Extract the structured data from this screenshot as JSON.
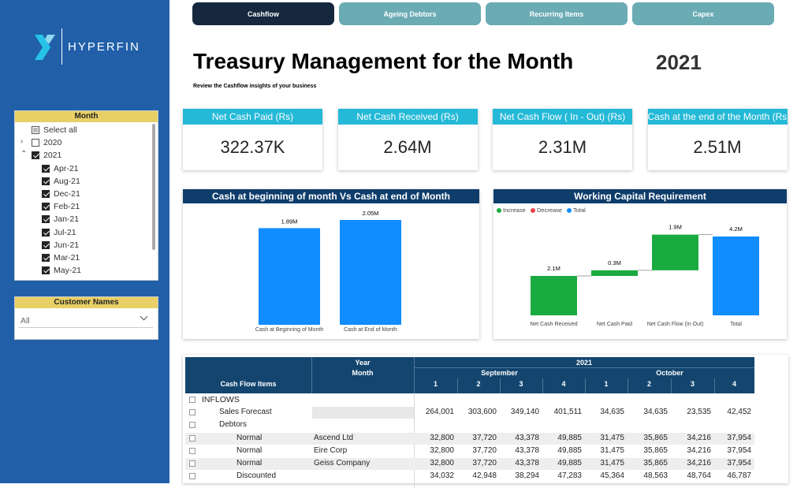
{
  "tabs": [
    "Cashflow",
    "Ageing Debtors",
    "Recurring Items",
    "Capex"
  ],
  "active_tab": 0,
  "logo": "HYPERFIN",
  "header": {
    "title": "Treasury Management for the Month",
    "year": "2021",
    "subtitle": "Review the Cashflow insights of your business"
  },
  "month_slicer": {
    "title": "Month",
    "items": [
      {
        "label": "Select all",
        "state": "partial",
        "level": 0
      },
      {
        "label": "2020",
        "state": "unchecked",
        "level": 0,
        "expand": "collapsed"
      },
      {
        "label": "2021",
        "state": "checked",
        "level": 0,
        "expand": "expanded"
      },
      {
        "label": "Apr-21",
        "state": "checked",
        "level": 1
      },
      {
        "label": "Aug-21",
        "state": "checked",
        "level": 1
      },
      {
        "label": "Dec-21",
        "state": "checked",
        "level": 1
      },
      {
        "label": "Feb-21",
        "state": "checked",
        "level": 1
      },
      {
        "label": "Jan-21",
        "state": "checked",
        "level": 1
      },
      {
        "label": "Jul-21",
        "state": "checked",
        "level": 1
      },
      {
        "label": "Jun-21",
        "state": "checked",
        "level": 1
      },
      {
        "label": "Mar-21",
        "state": "checked",
        "level": 1
      },
      {
        "label": "May-21",
        "state": "checked",
        "level": 1
      }
    ]
  },
  "customer_slicer": {
    "title": "Customer Names",
    "value": "All"
  },
  "kpis": [
    {
      "label": "Net Cash Paid (Rs)",
      "value": "322.37K"
    },
    {
      "label": "Net Cash Received (Rs)",
      "value": "2.64M"
    },
    {
      "label": "Net Cash Flow ( In - Out) (Rs)",
      "value": "2.31M"
    },
    {
      "label": "Cash at the end of the Month (Rs)",
      "value": "2.51M"
    }
  ],
  "chart_data": [
    {
      "type": "bar",
      "title": "Cash at beginning of month Vs Cash at end of Month",
      "categories": [
        "Cash at Beginning of Month",
        "Cash at End of Month"
      ],
      "values": [
        1.89,
        2.05
      ],
      "value_labels": [
        "1.89M",
        "2.05M"
      ],
      "color": "#118dff"
    },
    {
      "type": "waterfall",
      "title": "Working Capital Requirement",
      "legend": [
        {
          "name": "Increase",
          "color": "#1aab40"
        },
        {
          "name": "Decrease",
          "color": "#e8424d"
        },
        {
          "name": "Total",
          "color": "#118dff"
        }
      ],
      "categories": [
        "Net Cash Received",
        "Net Cash Paid",
        "Net Cash Flow (In Out)",
        "Total"
      ],
      "kinds": [
        "Increase",
        "Increase",
        "Increase",
        "Total"
      ],
      "values": [
        2.1,
        0.3,
        1.9,
        4.2
      ],
      "value_labels": [
        "2.1M",
        "0.3M",
        "1.9M",
        "4.2M"
      ]
    }
  ],
  "table": {
    "year_label": "Year",
    "month_label": "Month",
    "items_label": "Cash Flow Items",
    "year": "2021",
    "months": [
      "September",
      "October"
    ],
    "weeks": [
      "1",
      "2",
      "3",
      "4",
      "1",
      "2",
      "3",
      "4"
    ],
    "rows": [
      {
        "item": "INFLOWS",
        "level": 0,
        "customer": "",
        "cells": []
      },
      {
        "item": "Sales Forecast",
        "level": 1,
        "customer": "",
        "cells": [
          "264,001",
          "303,600",
          "349,140",
          "401,511",
          "34,635",
          "34,635",
          "23,535",
          "42,452"
        ]
      },
      {
        "item": "Debtors",
        "level": 1,
        "customer": "",
        "cells": []
      },
      {
        "item": "Normal",
        "level": 2,
        "customer": "Ascend Ltd",
        "cells": [
          "32,800",
          "37,720",
          "43,378",
          "49,885",
          "31,475",
          "35,865",
          "34,216",
          "37,954"
        ]
      },
      {
        "item": "Normal",
        "level": 2,
        "customer": "Eire Corp",
        "cells": [
          "32,800",
          "37,720",
          "43,378",
          "49,885",
          "31,475",
          "35,865",
          "34,216",
          "37,954"
        ]
      },
      {
        "item": "Normal",
        "level": 2,
        "customer": "Geiss Company",
        "cells": [
          "32,800",
          "37,720",
          "43,378",
          "49,885",
          "31,475",
          "35,865",
          "34,216",
          "37,954"
        ]
      },
      {
        "item": "Discounted",
        "level": 2,
        "customer": "",
        "cells": [
          "34,032",
          "42,948",
          "38,294",
          "47,283",
          "45,364",
          "48,563",
          "48,764",
          "46,787"
        ]
      }
    ]
  }
}
